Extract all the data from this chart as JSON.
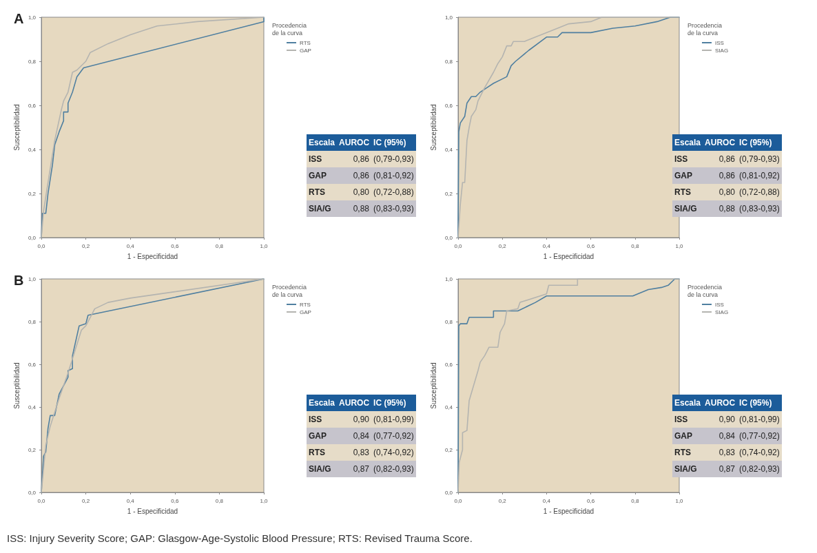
{
  "chart_data": [
    {
      "type": "line",
      "title": "A",
      "xlabel": "1 - Especificidad",
      "ylabel": "Susceptibilidad",
      "legend_title": "Procedencia de la curva",
      "legend": "top right",
      "marker": "none",
      "line_style": "solid",
      "grid": false,
      "xlim": [
        0,
        1
      ],
      "ylim": [
        0,
        1
      ],
      "xticks": [
        {
          "value": 0,
          "label": "0,0"
        },
        {
          "value": 0.2,
          "label": "0,2"
        },
        {
          "value": 0.4,
          "label": "0,4"
        },
        {
          "value": 0.6,
          "label": "0,6"
        },
        {
          "value": 0.8,
          "label": "0,8"
        },
        {
          "value": 1,
          "label": "1,0"
        }
      ],
      "yticks": [
        {
          "value": 0,
          "label": "0,0"
        },
        {
          "value": 0.2,
          "label": "0,2"
        },
        {
          "value": 0.4,
          "label": "0,4"
        },
        {
          "value": 0.6,
          "label": "0,6"
        },
        {
          "value": 0.8,
          "label": "0,8"
        },
        {
          "value": 1,
          "label": "1,0"
        }
      ],
      "series": [
        {
          "name": "RTS",
          "color": "#4f7fa0",
          "x": [
            0,
            0.005,
            0.02,
            0.03,
            0.05,
            0.06,
            0.08,
            0.1,
            0.1,
            0.12,
            0.12,
            0.14,
            0.16,
            0.19,
            1,
            1
          ],
          "values": [
            0,
            0.11,
            0.11,
            0.2,
            0.33,
            0.42,
            0.48,
            0.53,
            0.57,
            0.57,
            0.61,
            0.66,
            0.73,
            0.77,
            0.98,
            1
          ]
        },
        {
          "name": "GAP",
          "color": "#b4b4b0",
          "x": [
            0,
            0.01,
            0.03,
            0.06,
            0.09,
            0.1,
            0.12,
            0.14,
            0.16,
            0.2,
            0.22,
            0.3,
            0.4,
            0.52,
            0.7,
            1
          ],
          "values": [
            0,
            0.12,
            0.25,
            0.44,
            0.58,
            0.62,
            0.66,
            0.75,
            0.76,
            0.8,
            0.84,
            0.88,
            0.92,
            0.96,
            0.98,
            1
          ]
        }
      ]
    },
    {
      "type": "other",
      "annotations": [
        "Escala",
        "AUROC",
        "IC (95%)",
        "ISS",
        "0,86",
        "(0,79-0,93)",
        "GAP",
        "0,86",
        "(0,81-0,92)",
        "RTS",
        "0,80",
        "(0,72-0,88)",
        "SIA/G",
        "0,88",
        "(0,83-0,93)"
      ]
    },
    {
      "type": "line",
      "xlabel": "1 - Especificidad",
      "ylabel": "Susceptibilidad",
      "legend_title": "Procedencia de la curva",
      "legend": "top right",
      "marker": "none",
      "line_style": "solid",
      "grid": false,
      "xlim": [
        0,
        1
      ],
      "ylim": [
        0,
        1
      ],
      "xticks": [
        {
          "value": 0,
          "label": "0,0"
        },
        {
          "value": 0.2,
          "label": "0,2"
        },
        {
          "value": 0.4,
          "label": "0,4"
        },
        {
          "value": 0.6,
          "label": "0,6"
        },
        {
          "value": 0.8,
          "label": "0,8"
        },
        {
          "value": 1,
          "label": "1,0"
        }
      ],
      "yticks": [
        {
          "value": 0,
          "label": "0,0"
        },
        {
          "value": 0.2,
          "label": "0,2"
        },
        {
          "value": 0.4,
          "label": "0,4"
        },
        {
          "value": 0.6,
          "label": "0,6"
        },
        {
          "value": 0.8,
          "label": "0,8"
        },
        {
          "value": 1,
          "label": "1,0"
        }
      ],
      "series": [
        {
          "name": "ISS",
          "color": "#4f7fa0",
          "x": [
            0,
            0.003,
            0.01,
            0.03,
            0.04,
            0.06,
            0.08,
            0.1,
            0.13,
            0.16,
            0.2,
            0.22,
            0.24,
            0.26,
            0.32,
            0.4,
            0.45,
            0.47,
            0.6,
            0.7,
            0.8,
            0.9,
            0.96,
            1
          ],
          "values": [
            0,
            0.48,
            0.52,
            0.55,
            0.61,
            0.64,
            0.64,
            0.66,
            0.68,
            0.7,
            0.72,
            0.73,
            0.78,
            0.8,
            0.85,
            0.91,
            0.91,
            0.93,
            0.93,
            0.95,
            0.96,
            0.98,
            1,
            1
          ]
        },
        {
          "name": "SIAG",
          "color": "#b4b4b0",
          "x": [
            0,
            0.01,
            0.02,
            0.03,
            0.04,
            0.05,
            0.06,
            0.08,
            0.09,
            0.1,
            0.12,
            0.16,
            0.18,
            0.2,
            0.22,
            0.24,
            0.25,
            0.3,
            0.35,
            0.45,
            0.5,
            0.6,
            0.65,
            1
          ],
          "values": [
            0,
            0.15,
            0.25,
            0.25,
            0.44,
            0.5,
            0.55,
            0.58,
            0.62,
            0.64,
            0.68,
            0.75,
            0.79,
            0.82,
            0.87,
            0.87,
            0.89,
            0.89,
            0.91,
            0.95,
            0.97,
            0.98,
            1,
            1
          ]
        }
      ]
    },
    {
      "type": "other",
      "annotations": [
        "Escala",
        "AUROC",
        "IC (95%)",
        "ISS",
        "0,86",
        "(0,79-0,93)",
        "GAP",
        "0,86",
        "(0,81-0,92)",
        "RTS",
        "0,80",
        "(0,72-0,88)",
        "SIA/G",
        "0,88",
        "(0,83-0,93)"
      ]
    },
    {
      "type": "line",
      "title": "B",
      "xlabel": "1 - Especificidad",
      "ylabel": "Susceptibilidad",
      "legend_title": "Procedencia de la curva",
      "legend": "top right",
      "marker": "none",
      "line_style": "solid",
      "grid": false,
      "xlim": [
        0,
        1
      ],
      "ylim": [
        0,
        1
      ],
      "xticks": [
        {
          "value": 0,
          "label": "0,0"
        },
        {
          "value": 0.2,
          "label": "0,2"
        },
        {
          "value": 0.4,
          "label": "0,4"
        },
        {
          "value": 0.6,
          "label": "0,6"
        },
        {
          "value": 0.8,
          "label": "0,8"
        },
        {
          "value": 1,
          "label": "1,0"
        }
      ],
      "yticks": [
        {
          "value": 0,
          "label": "0,0"
        },
        {
          "value": 0.2,
          "label": "0,2"
        },
        {
          "value": 0.4,
          "label": "0,4"
        },
        {
          "value": 0.6,
          "label": "0,6"
        },
        {
          "value": 0.8,
          "label": "0,8"
        },
        {
          "value": 1,
          "label": "1,0"
        }
      ],
      "series": [
        {
          "name": "RTS",
          "color": "#4f7fa0",
          "x": [
            0,
            0.01,
            0.02,
            0.03,
            0.04,
            0.06,
            0.08,
            0.12,
            0.12,
            0.14,
            0.14,
            0.17,
            0.2,
            0.21,
            1
          ],
          "values": [
            0,
            0.17,
            0.19,
            0.3,
            0.36,
            0.36,
            0.46,
            0.54,
            0.57,
            0.58,
            0.64,
            0.78,
            0.79,
            0.83,
            1
          ]
        },
        {
          "name": "GAP",
          "color": "#b4b4b0",
          "x": [
            0,
            0.02,
            0.04,
            0.08,
            0.12,
            0.15,
            0.18,
            0.2,
            0.22,
            0.24,
            0.3,
            0.4,
            0.6,
            1
          ],
          "values": [
            0,
            0.22,
            0.31,
            0.44,
            0.56,
            0.66,
            0.76,
            0.78,
            0.82,
            0.86,
            0.89,
            0.91,
            0.94,
            1
          ]
        }
      ]
    },
    {
      "type": "other",
      "annotations": [
        "Escala",
        "AUROC",
        "IC (95%)",
        "ISS",
        "0,90",
        "(0,81-0,99)",
        "GAP",
        "0,84",
        "(0,77-0,92)",
        "RTS",
        "0,83",
        "(0,74-0,92)",
        "SIA/G",
        "0,87",
        "(0,82-0,93)"
      ]
    },
    {
      "type": "line",
      "xlabel": "1 - Especificidad",
      "ylabel": "Susceptibilidad",
      "legend_title": "Procedencia de la curva",
      "legend": "top right",
      "marker": "none",
      "line_style": "solid",
      "grid": false,
      "xlim": [
        0,
        1
      ],
      "ylim": [
        0,
        1
      ],
      "xticks": [
        {
          "value": 0,
          "label": "0,0"
        },
        {
          "value": 0.2,
          "label": "0,2"
        },
        {
          "value": 0.4,
          "label": "0,4"
        },
        {
          "value": 0.6,
          "label": "0,6"
        },
        {
          "value": 0.8,
          "label": "0,8"
        },
        {
          "value": 1,
          "label": "1,0"
        }
      ],
      "yticks": [
        {
          "value": 0,
          "label": "0,0"
        },
        {
          "value": 0.2,
          "label": "0,2"
        },
        {
          "value": 0.4,
          "label": "0,4"
        },
        {
          "value": 0.6,
          "label": "0,6"
        },
        {
          "value": 0.8,
          "label": "0,8"
        },
        {
          "value": 1,
          "label": "1,0"
        }
      ],
      "series": [
        {
          "name": "ISS",
          "color": "#4f7fa0",
          "x": [
            0,
            0.003,
            0.01,
            0.04,
            0.05,
            0.16,
            0.16,
            0.22,
            0.27,
            0.35,
            0.4,
            0.79,
            0.86,
            0.92,
            0.95,
            0.98,
            1
          ],
          "values": [
            0,
            0.78,
            0.79,
            0.79,
            0.82,
            0.82,
            0.85,
            0.85,
            0.85,
            0.89,
            0.92,
            0.92,
            0.95,
            0.96,
            0.97,
            1,
            1
          ]
        },
        {
          "name": "SIAG",
          "color": "#b4b4b0",
          "x": [
            0,
            0.005,
            0.02,
            0.02,
            0.04,
            0.05,
            0.07,
            0.09,
            0.1,
            0.12,
            0.14,
            0.18,
            0.19,
            0.21,
            0.22,
            0.27,
            0.28,
            0.4,
            0.41,
            0.54,
            0.54,
            1
          ],
          "values": [
            0,
            0.14,
            0.2,
            0.28,
            0.29,
            0.43,
            0.5,
            0.57,
            0.61,
            0.64,
            0.68,
            0.68,
            0.75,
            0.79,
            0.85,
            0.86,
            0.89,
            0.93,
            0.97,
            0.97,
            1,
            1
          ]
        }
      ]
    },
    {
      "type": "other",
      "annotations": [
        "Escala",
        "AUROC",
        "IC (95%)",
        "ISS",
        "0,90",
        "(0,81-0,99)",
        "GAP",
        "0,84",
        "(0,77-0,92)",
        "RTS",
        "0,83",
        "(0,74-0,92)",
        "SIA/G",
        "0,87",
        "(0,82-0,93)"
      ]
    },
    {
      "type": "other",
      "annotations": [
        "ISS: Injury Severity Score; GAP: Glasgow-Age-Systolic Blood Pressure; RTS: Revised Trauma Score."
      ]
    }
  ]
}
